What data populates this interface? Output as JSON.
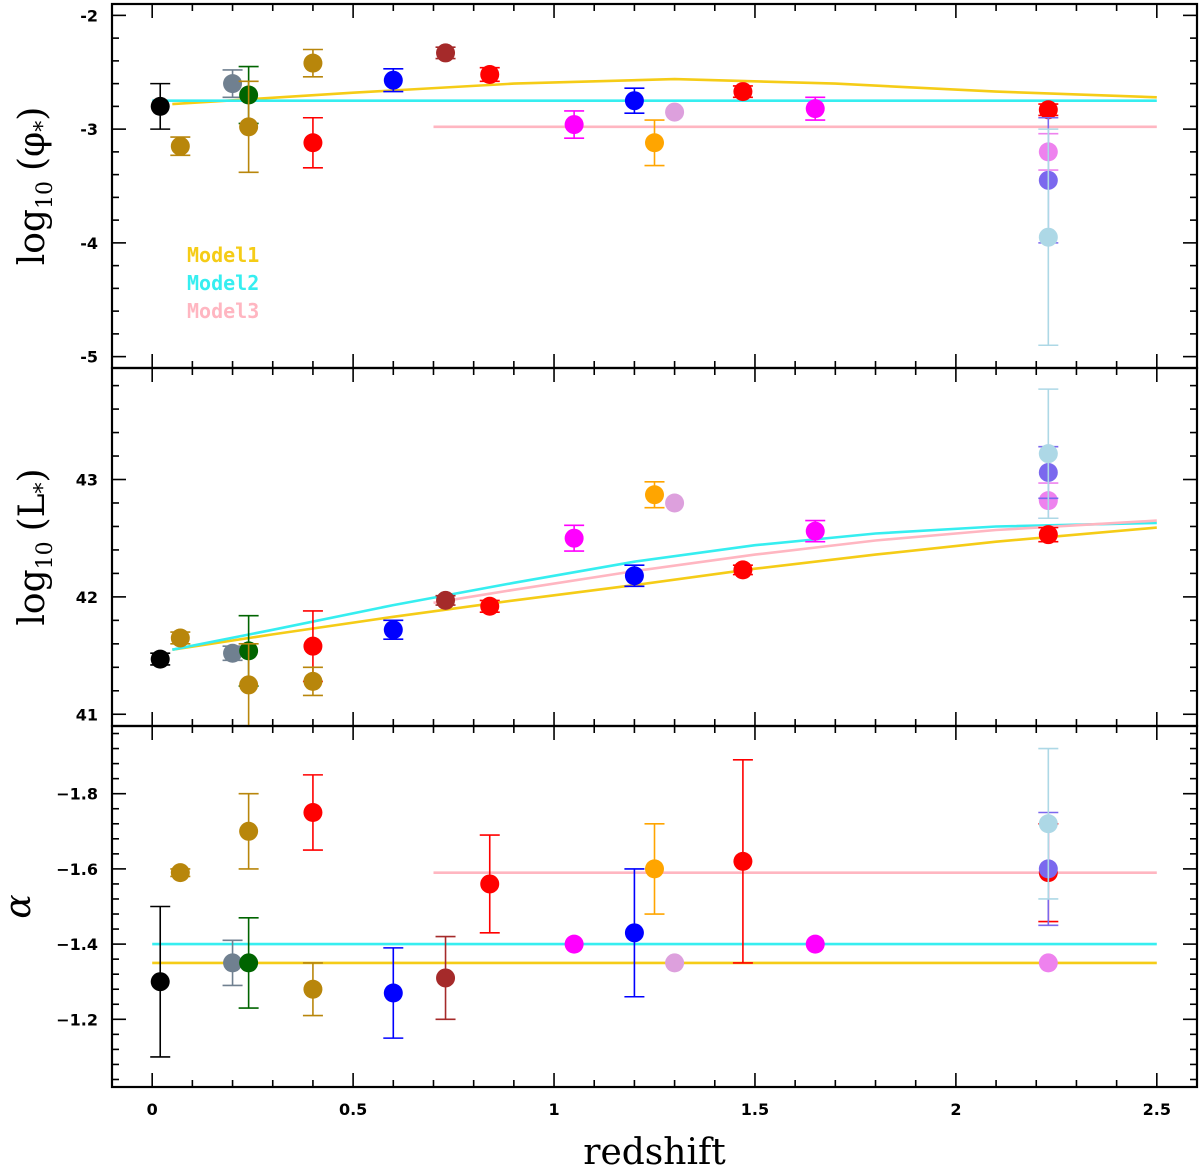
{
  "chart_data": [
    {
      "type": "scatter",
      "panel": "top",
      "ylabel": "log10 (φ*)",
      "ylabel_parts": {
        "main": "log",
        "sub": "10",
        "arg": "(φ",
        "star": "*",
        "close": ")"
      },
      "xlim": [
        -0.1,
        2.6
      ],
      "ylim": [
        -5.1,
        -1.9
      ],
      "ytick_labels": [
        "-2",
        "-3",
        "-4",
        "-5"
      ],
      "yticks": [
        -2,
        -3,
        -4,
        -5
      ],
      "legend": [
        {
          "name": "Model1",
          "color": "#f5cc17"
        },
        {
          "name": "Model2",
          "color": "#36eef0"
        },
        {
          "name": "Model3",
          "color": "#ffb6c1"
        }
      ],
      "legend_placement": "lower-left",
      "model_lines": [
        {
          "color": "#f5cc17",
          "points": [
            [
              0.05,
              -2.78
            ],
            [
              0.5,
              -2.68
            ],
            [
              0.9,
              -2.6
            ],
            [
              1.3,
              -2.56
            ],
            [
              1.7,
              -2.6
            ],
            [
              2.1,
              -2.67
            ],
            [
              2.5,
              -2.72
            ]
          ]
        },
        {
          "color": "#36eef0",
          "points": [
            [
              0.0,
              -2.75
            ],
            [
              2.5,
              -2.75
            ]
          ]
        },
        {
          "color": "#ffb6c1",
          "points": [
            [
              0.7,
              -2.98
            ],
            [
              2.5,
              -2.98
            ]
          ]
        }
      ],
      "points": [
        {
          "x": 0.02,
          "y": -2.8,
          "err": [
            0.2,
            0.2
          ],
          "color": "#000000"
        },
        {
          "x": 0.07,
          "y": -3.15,
          "err": [
            0.08,
            0.08
          ],
          "color": "#b8860b"
        },
        {
          "x": 0.2,
          "y": -2.6,
          "err": [
            0.12,
            0.12
          ],
          "color": "#708090"
        },
        {
          "x": 0.24,
          "y": -2.7,
          "err": [
            0.25,
            0.25
          ],
          "color": "#006400"
        },
        {
          "x": 0.24,
          "y": -2.98,
          "err": [
            0.4,
            0.4
          ],
          "color": "#b8860b"
        },
        {
          "x": 0.4,
          "y": -2.42,
          "err": [
            0.12,
            0.12
          ],
          "color": "#b8860b"
        },
        {
          "x": 0.4,
          "y": -3.12,
          "err": [
            0.22,
            0.22
          ],
          "color": "#ff0000"
        },
        {
          "x": 0.6,
          "y": -2.57,
          "err": [
            0.1,
            0.1
          ],
          "color": "#0000ff"
        },
        {
          "x": 0.73,
          "y": -2.33,
          "err": [
            0.05,
            0.05
          ],
          "color": "#a52a2a"
        },
        {
          "x": 0.84,
          "y": -2.52,
          "err": [
            0.06,
            0.06
          ],
          "color": "#ff0000"
        },
        {
          "x": 1.05,
          "y": -2.96,
          "err": [
            0.12,
            0.12
          ],
          "color": "#ff00ff"
        },
        {
          "x": 1.2,
          "y": -2.75,
          "err": [
            0.11,
            0.11
          ],
          "color": "#0000ff"
        },
        {
          "x": 1.25,
          "y": -3.12,
          "err": [
            0.2,
            0.2
          ],
          "color": "#ffa500"
        },
        {
          "x": 1.3,
          "y": -2.85,
          "err": [
            0.0,
            0.0
          ],
          "color": "#dda0dd"
        },
        {
          "x": 1.47,
          "y": -2.67,
          "err": [
            0.05,
            0.05
          ],
          "color": "#ff0000"
        },
        {
          "x": 1.65,
          "y": -2.82,
          "err": [
            0.1,
            0.1
          ],
          "color": "#ff00ff"
        },
        {
          "x": 2.23,
          "y": -2.83,
          "err": [
            0.05,
            0.05
          ],
          "color": "#ff0000"
        },
        {
          "x": 2.23,
          "y": -3.2,
          "err": [
            0.16,
            0.16
          ],
          "color": "#ee82ee"
        },
        {
          "x": 2.23,
          "y": -3.45,
          "err": [
            0.55,
            0.55
          ],
          "color": "#7b68ee"
        },
        {
          "x": 2.23,
          "y": -3.95,
          "err": [
            0.95,
            0.95
          ],
          "color": "#add8e6"
        }
      ]
    },
    {
      "type": "scatter",
      "panel": "middle",
      "ylabel": "log10 (L*)",
      "ylabel_parts": {
        "main": "log",
        "sub": "10",
        "arg": "(L",
        "star": "*",
        "close": ")"
      },
      "xlim": [
        -0.1,
        2.6
      ],
      "ylim": [
        40.9,
        43.95
      ],
      "ytick_labels": [
        "41",
        "42",
        "43"
      ],
      "yticks": [
        41,
        42,
        43
      ],
      "model_lines": [
        {
          "color": "#f5cc17",
          "points": [
            [
              0.05,
              41.55
            ],
            [
              0.3,
              41.68
            ],
            [
              0.6,
              41.83
            ],
            [
              0.9,
              41.97
            ],
            [
              1.2,
              42.1
            ],
            [
              1.5,
              42.24
            ],
            [
              1.8,
              42.36
            ],
            [
              2.1,
              42.47
            ],
            [
              2.5,
              42.59
            ]
          ]
        },
        {
          "color": "#36eef0",
          "points": [
            [
              0.05,
              41.55
            ],
            [
              0.3,
              41.72
            ],
            [
              0.6,
              41.93
            ],
            [
              0.9,
              42.12
            ],
            [
              1.2,
              42.3
            ],
            [
              1.5,
              42.44
            ],
            [
              1.8,
              42.54
            ],
            [
              2.1,
              42.6
            ],
            [
              2.5,
              42.63
            ]
          ]
        },
        {
          "color": "#ffb6c1",
          "points": [
            [
              0.7,
              41.95
            ],
            [
              0.9,
              42.06
            ],
            [
              1.2,
              42.22
            ],
            [
              1.5,
              42.36
            ],
            [
              1.8,
              42.48
            ],
            [
              2.1,
              42.57
            ],
            [
              2.5,
              42.65
            ]
          ]
        }
      ],
      "points": [
        {
          "x": 0.02,
          "y": 41.47,
          "err": [
            0.05,
            0.05
          ],
          "color": "#000000"
        },
        {
          "x": 0.07,
          "y": 41.65,
          "err": [
            0.05,
            0.05
          ],
          "color": "#b8860b"
        },
        {
          "x": 0.2,
          "y": 41.52,
          "err": [
            0.06,
            0.06
          ],
          "color": "#708090"
        },
        {
          "x": 0.24,
          "y": 41.54,
          "err": [
            0.3,
            0.3
          ],
          "color": "#006400"
        },
        {
          "x": 0.24,
          "y": 41.25,
          "err": [
            0.35,
            0.35
          ],
          "color": "#b8860b"
        },
        {
          "x": 0.4,
          "y": 41.58,
          "err": [
            0.3,
            0.3
          ],
          "color": "#ff0000"
        },
        {
          "x": 0.4,
          "y": 41.28,
          "err": [
            0.12,
            0.12
          ],
          "color": "#b8860b"
        },
        {
          "x": 0.6,
          "y": 41.72,
          "err": [
            0.08,
            0.08
          ],
          "color": "#0000ff"
        },
        {
          "x": 0.73,
          "y": 41.97,
          "err": [
            0.04,
            0.04
          ],
          "color": "#a52a2a"
        },
        {
          "x": 0.84,
          "y": 41.92,
          "err": [
            0.05,
            0.05
          ],
          "color": "#ff0000"
        },
        {
          "x": 1.05,
          "y": 42.5,
          "err": [
            0.11,
            0.11
          ],
          "color": "#ff00ff"
        },
        {
          "x": 1.2,
          "y": 42.18,
          "err": [
            0.09,
            0.09
          ],
          "color": "#0000ff"
        },
        {
          "x": 1.25,
          "y": 42.87,
          "err": [
            0.11,
            0.11
          ],
          "color": "#ffa500"
        },
        {
          "x": 1.3,
          "y": 42.8,
          "err": [
            0.0,
            0.0
          ],
          "color": "#dda0dd"
        },
        {
          "x": 1.47,
          "y": 42.23,
          "err": [
            0.04,
            0.04
          ],
          "color": "#ff0000"
        },
        {
          "x": 1.65,
          "y": 42.56,
          "err": [
            0.09,
            0.09
          ],
          "color": "#ff00ff"
        },
        {
          "x": 2.23,
          "y": 42.53,
          "err": [
            0.06,
            0.06
          ],
          "color": "#ff0000"
        },
        {
          "x": 2.23,
          "y": 42.82,
          "err": [
            0.15,
            0.15
          ],
          "color": "#ee82ee"
        },
        {
          "x": 2.23,
          "y": 43.06,
          "err": [
            0.22,
            0.22
          ],
          "color": "#7b68ee"
        },
        {
          "x": 2.23,
          "y": 43.22,
          "err": [
            0.55,
            0.55
          ],
          "color": "#add8e6"
        }
      ]
    },
    {
      "type": "scatter",
      "panel": "bottom",
      "ylabel": "α",
      "xlabel": "redshift",
      "xlim": [
        -0.1,
        2.6
      ],
      "ylim": [
        -1.02,
        -1.98
      ],
      "xtick_labels": [
        "0",
        "0.5",
        "1",
        "1.5",
        "2",
        "2.5"
      ],
      "xticks": [
        0,
        0.5,
        1,
        1.5,
        2,
        2.5
      ],
      "ytick_labels": [
        "−1.2",
        "−1.4",
        "−1.6",
        "−1.8"
      ],
      "yticks": [
        -1.2,
        -1.4,
        -1.6,
        -1.8
      ],
      "model_lines": [
        {
          "color": "#f5cc17",
          "points": [
            [
              0.0,
              -1.35
            ],
            [
              2.5,
              -1.35
            ]
          ]
        },
        {
          "color": "#36eef0",
          "points": [
            [
              0.0,
              -1.4
            ],
            [
              2.5,
              -1.4
            ]
          ]
        },
        {
          "color": "#ffb6c1",
          "points": [
            [
              0.7,
              -1.59
            ],
            [
              2.5,
              -1.59
            ]
          ]
        }
      ],
      "points": [
        {
          "x": 0.02,
          "y": -1.3,
          "err": [
            0.2,
            0.2
          ],
          "color": "#000000"
        },
        {
          "x": 0.07,
          "y": -1.59,
          "err": [
            0.01,
            0.01
          ],
          "color": "#b8860b"
        },
        {
          "x": 0.2,
          "y": -1.35,
          "err": [
            0.06,
            0.06
          ],
          "color": "#708090"
        },
        {
          "x": 0.24,
          "y": -1.35,
          "err": [
            0.12,
            0.12
          ],
          "color": "#006400"
        },
        {
          "x": 0.24,
          "y": -1.7,
          "err": [
            0.1,
            0.1
          ],
          "color": "#b8860b"
        },
        {
          "x": 0.4,
          "y": -1.28,
          "err": [
            0.07,
            0.07
          ],
          "color": "#b8860b"
        },
        {
          "x": 0.4,
          "y": -1.75,
          "err": [
            0.1,
            0.1
          ],
          "color": "#ff0000"
        },
        {
          "x": 0.6,
          "y": -1.27,
          "err": [
            0.12,
            0.12
          ],
          "color": "#0000ff"
        },
        {
          "x": 0.73,
          "y": -1.31,
          "err": [
            0.11,
            0.11
          ],
          "color": "#a52a2a"
        },
        {
          "x": 0.84,
          "y": -1.56,
          "err": [
            0.13,
            0.13
          ],
          "color": "#ff0000"
        },
        {
          "x": 1.05,
          "y": -1.4,
          "err": [
            0.0,
            0.0
          ],
          "color": "#ff00ff"
        },
        {
          "x": 1.2,
          "y": -1.43,
          "err": [
            0.17,
            0.17
          ],
          "color": "#0000ff"
        },
        {
          "x": 1.25,
          "y": -1.6,
          "err": [
            0.12,
            0.12
          ],
          "color": "#ffa500"
        },
        {
          "x": 1.3,
          "y": -1.35,
          "err": [
            0.0,
            0.0
          ],
          "color": "#dda0dd"
        },
        {
          "x": 1.47,
          "y": -1.62,
          "err": [
            0.27,
            0.27
          ],
          "color": "#ff0000"
        },
        {
          "x": 1.65,
          "y": -1.4,
          "err": [
            0.0,
            0.0
          ],
          "color": "#ff00ff"
        },
        {
          "x": 2.23,
          "y": -1.59,
          "err": [
            0.13,
            0.13
          ],
          "color": "#ff0000"
        },
        {
          "x": 2.23,
          "y": -1.35,
          "err": [
            0.0,
            0.0
          ],
          "color": "#ee82ee"
        },
        {
          "x": 2.23,
          "y": -1.6,
          "err": [
            0.15,
            0.15
          ],
          "color": "#7b68ee"
        },
        {
          "x": 2.23,
          "y": -1.72,
          "err": [
            0.2,
            0.2
          ],
          "color": "#add8e6"
        }
      ]
    }
  ]
}
